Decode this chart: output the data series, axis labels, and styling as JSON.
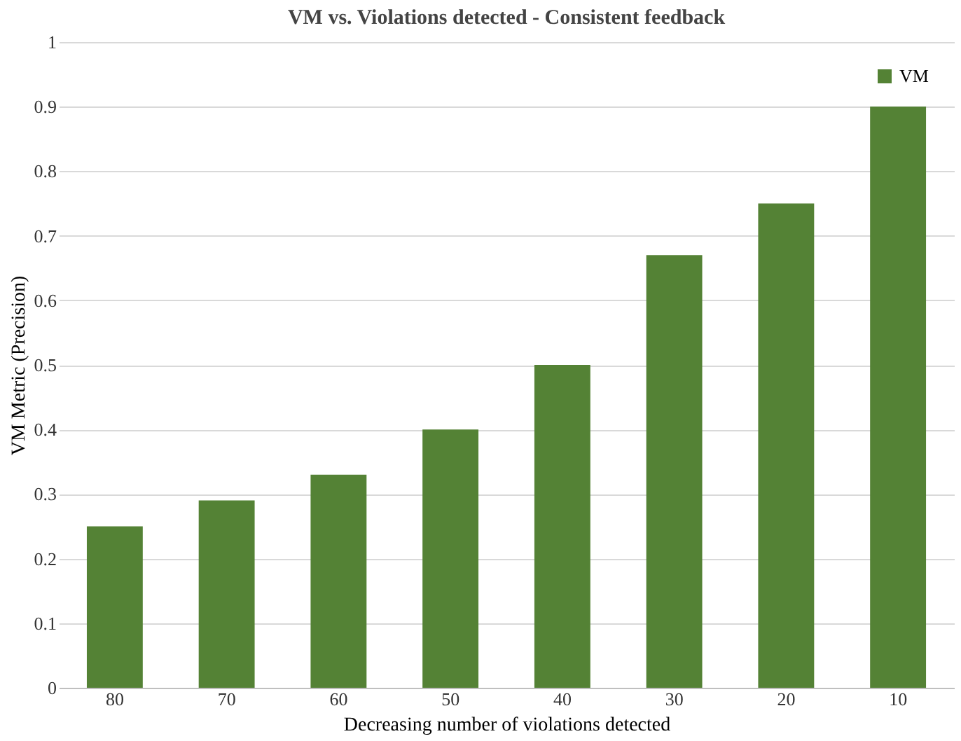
{
  "chart_data": {
    "type": "bar",
    "title": "VM vs. Violations detected - Consistent feedback",
    "xlabel": "Decreasing number of violations detected",
    "ylabel": "VM Metric (Precision)",
    "categories": [
      "80",
      "70",
      "60",
      "50",
      "40",
      "30",
      "20",
      "10"
    ],
    "series": [
      {
        "name": "VM",
        "color": "#548235",
        "values": [
          0.25,
          0.29,
          0.33,
          0.4,
          0.5,
          0.67,
          0.75,
          0.9
        ]
      }
    ],
    "ylim": [
      0,
      1
    ],
    "yticks": [
      0,
      0.1,
      0.2,
      0.3,
      0.4,
      0.5,
      0.6,
      0.7,
      0.8,
      0.9,
      1
    ],
    "grid": "y",
    "legend": "top right"
  }
}
